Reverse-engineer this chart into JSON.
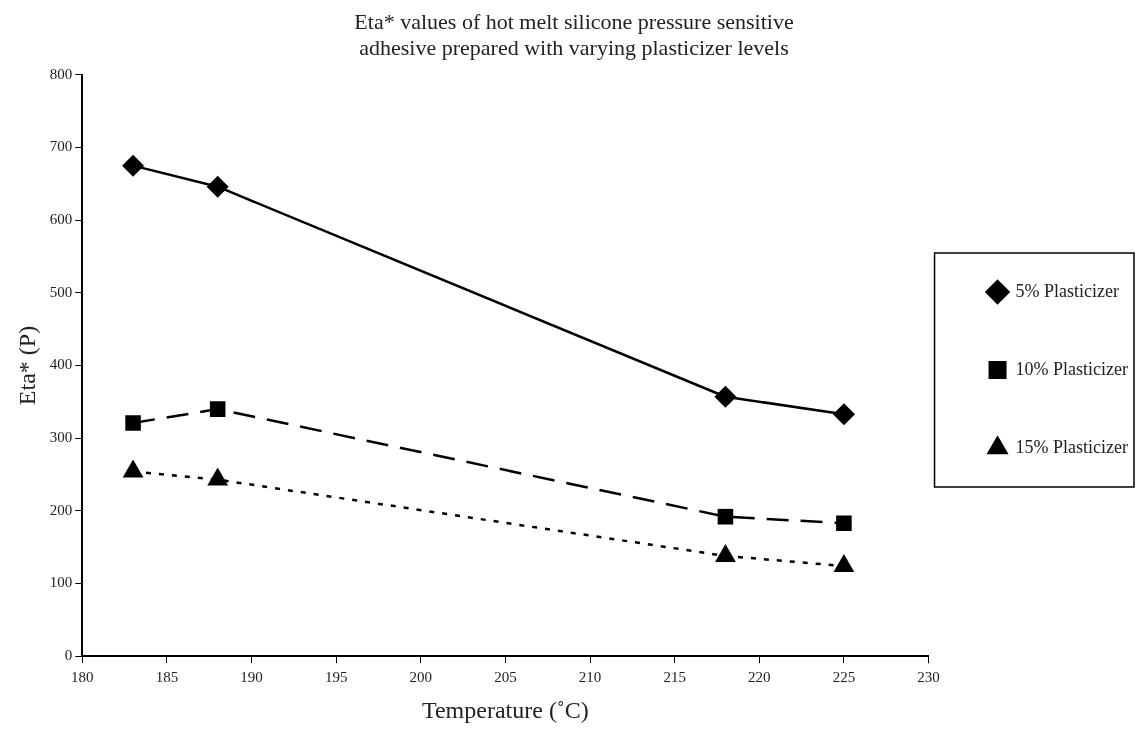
{
  "chart_data": {
    "type": "line",
    "title": "Eta* values of hot melt silicone pressure sensitive adhesive prepared with varying plasticizer levels",
    "xlabel": "Temperature (˚C)",
    "ylabel": "Eta* (P)",
    "x": [
      183,
      188,
      218,
      225
    ],
    "series": [
      {
        "name": "5% Plasticizer",
        "color": "#000000",
        "values": [
          675,
          646,
          357,
          333
        ],
        "marker": "diamond",
        "line_style": "solid"
      },
      {
        "name": "10% Plasticizer",
        "color": "#000000",
        "values": [
          321,
          340,
          192,
          183
        ],
        "marker": "square",
        "line_style": "dashed"
      },
      {
        "name": "15% Plasticizer",
        "color": "#000000",
        "values": [
          254,
          243,
          138,
          124
        ],
        "marker": "triangle",
        "line_style": "dotted"
      }
    ],
    "xlim": [
      180,
      230
    ],
    "xticks": [
      180,
      185,
      190,
      195,
      200,
      205,
      210,
      215,
      220,
      225,
      230
    ],
    "ylim": [
      0,
      800
    ],
    "yticks": [
      0,
      100,
      200,
      300,
      400,
      500,
      600,
      700,
      800
    ],
    "grid": false,
    "legend": "right"
  }
}
